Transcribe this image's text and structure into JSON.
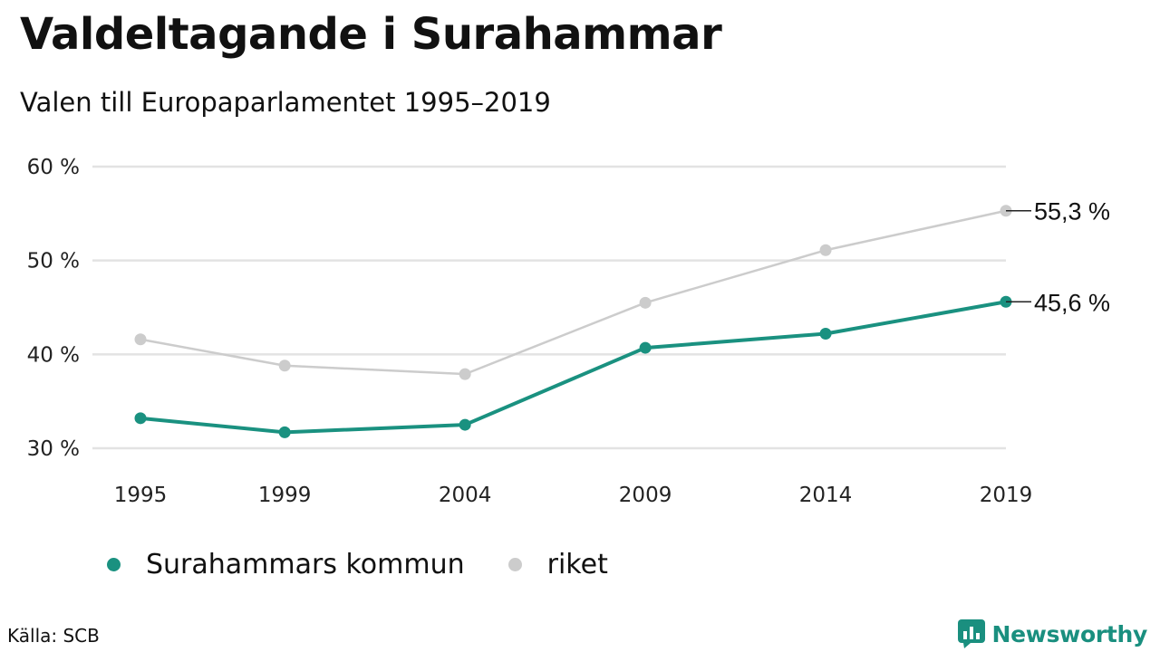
{
  "header": {
    "title": "Valdeltagande i Surahammar",
    "subtitle": "Valen till Europaparlamentet 1995–2019"
  },
  "chart_data": {
    "type": "line",
    "x": [
      1995,
      1999,
      2004,
      2009,
      2014,
      2019
    ],
    "x_tick_labels": [
      "1995",
      "1999",
      "2004",
      "2009",
      "2014",
      "2019"
    ],
    "y_ticks": [
      30,
      40,
      50,
      60
    ],
    "y_tick_labels": [
      "30 %",
      "40 %",
      "50 %",
      "60 %"
    ],
    "ylim": [
      30,
      60
    ],
    "grid": true,
    "legend_position": "bottom-left",
    "series": [
      {
        "name": "Surahammars kommun",
        "color": "#1a9180",
        "values": [
          33.2,
          31.7,
          32.5,
          40.7,
          42.2,
          45.6
        ],
        "end_label": "45,6 %"
      },
      {
        "name": "riket",
        "color": "#cccccc",
        "values": [
          41.6,
          38.8,
          37.9,
          45.5,
          51.1,
          55.3
        ],
        "end_label": "55,3 %"
      }
    ]
  },
  "footer": {
    "source": "Källa: SCB",
    "brand": "Newsworthy",
    "brand_color": "#1a8f7f"
  }
}
